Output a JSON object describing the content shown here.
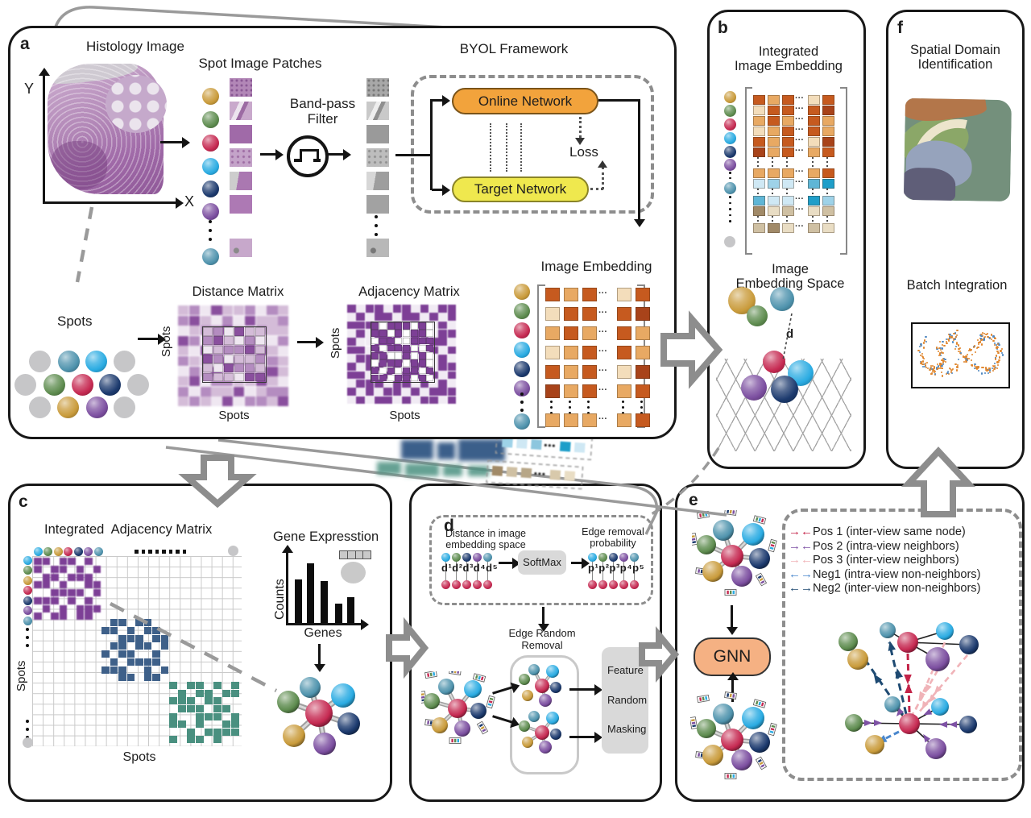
{
  "colors": {
    "gold": "#c99b3b",
    "green": "#5e8c4f",
    "crimson": "#c62a52",
    "lightblue": "#2aabe2",
    "navy": "#1c3a6e",
    "purple": "#7c4fa0",
    "teal": "#4f93ad",
    "gray_spot": "#c6c6c8",
    "online_orange": "#f2a33c",
    "target_yellow": "#efe84e",
    "gnn_peach": "#f5b183",
    "box_gray": "#d9d9d9",
    "dash_gray": "#8d8d8d",
    "matrix_purple": "#7d3f96",
    "block_blue": "#3e6089",
    "block_teal": "#4a9080",
    "scatter_orange": "#e0862e",
    "scatter_blue": "#4f87c0"
  },
  "palettes": {
    "embedding_orange": [
      "#c65a1f",
      "#e8a963",
      "#f3ddbb",
      "#a8431a",
      "#d97f3f"
    ],
    "embedding_blue": [
      "#cfe8f4",
      "#9ed2e8",
      "#5fb6d6",
      "#1f9ec9"
    ],
    "embedding_tan": [
      "#a18a68",
      "#cfc0a3",
      "#e9ddc4",
      "#b7a687"
    ],
    "distance_purple": [
      "#efe7f1",
      "#d4bcd8",
      "#b48cc0",
      "#8a4f9e"
    ]
  },
  "panel_a": {
    "label": "a",
    "histology_title": "Histology Image",
    "axis_y": "Y",
    "axis_x": "X",
    "patches_title": "Spot Image Patches",
    "bandpass_line1": "Band-pass",
    "bandpass_line2": "Filter",
    "byol_title": "BYOL Framework",
    "online_network": "Online Network",
    "target_network": "Target Network",
    "loss": "Loss",
    "spots_title": "Spots",
    "distance_title": "Distance Matrix",
    "adjacency_title": "Adjacency Matrix",
    "spots_axis_left": "Spots",
    "spots_axis_bottom": "Spots",
    "embedding_title": "Image Embedding",
    "spot_colors": [
      "gold",
      "green",
      "crimson",
      "lightblue",
      "navy",
      "purple",
      "teal"
    ],
    "embedding_rows": [
      "01020",
      "20003",
      "10101",
      "21001",
      "01023",
      "31010",
      "11110"
    ],
    "distance_outer": [
      "1203112021",
      "2310203112",
      "0122310211",
      "3201123102",
      "1032212310",
      "2110331021",
      "0213102231",
      "1302211310",
      "2021130122",
      "1210302213"
    ],
    "distance_inner": [
      "120311",
      "231020",
      "012231",
      "320112",
      "103221",
      "211033"
    ],
    "adjacency_outer": [
      "101101101011",
      "010110110101",
      "111001011010",
      "010111011011",
      "100111010110",
      "110100110101",
      "011011101010",
      "101101011011",
      "110010110101",
      "011101101010",
      "101011010111",
      "010110101101"
    ],
    "adjacency_inner": [
      "10111010",
      "11010110",
      "01100111",
      "10111001",
      "11001010",
      "01110110",
      "10101101",
      "11011010"
    ]
  },
  "panel_b": {
    "label": "b",
    "title_line1": "Integrated",
    "title_line2": "Image Embedding",
    "space_line1": "Image",
    "space_line2": "Embedding Space",
    "distance_label": "d",
    "dot_colors": [
      "gold",
      "green",
      "crimson",
      "lightblue",
      "navy",
      "purple",
      "teal"
    ],
    "orange_rows": [
      "01020",
      "20003",
      "10101",
      "21001",
      "01023",
      "31010",
      "11110"
    ],
    "blue_rows": [
      "01023",
      "20031"
    ],
    "tan_rows": [
      "02121",
      "10212"
    ]
  },
  "panel_c": {
    "label": "c",
    "title": "Integrated  Adjacency Matrix",
    "spots_left": "Spots",
    "spots_bottom": "Spots",
    "dot_colors": [
      "lightblue",
      "green",
      "gold",
      "crimson",
      "navy",
      "purple",
      "teal"
    ],
    "gene_title": "Gene Expresstion",
    "counts_label": "Counts",
    "genes_label": "Genes",
    "purple_block": [
      "11011010",
      "10110101",
      "01101110",
      "11010011",
      "00111101",
      "11101010",
      "01010111",
      "10110110"
    ],
    "blue_block": [
      "01101100",
      "11010110",
      "00111011",
      "01101101",
      "10110010",
      "01011110",
      "11100101",
      "00110110"
    ],
    "teal_block": [
      "10110101",
      "01011011",
      "11101100",
      "01110110",
      "10011101",
      "11010011",
      "00101111",
      "10110100"
    ]
  },
  "panel_d": {
    "label": "d",
    "dist_line1": "Distance in image",
    "dist_line2": "embedding space",
    "d_terms": "d¹d²d³d⁴d⁵",
    "softmax": "SoftMax",
    "edge_line1": "Edge removal",
    "edge_line2": "probability",
    "p_terms": "p¹p²p³p⁴p⁵",
    "removal_line1": "Edge Random",
    "removal_line2": "Removal",
    "masking_line1": "Feature",
    "masking_line2": "Random",
    "masking_line3": "Masking",
    "dot_colors": [
      "lightblue",
      "green",
      "navy",
      "purple",
      "teal"
    ]
  },
  "panel_e": {
    "label": "e",
    "gnn": "GNN",
    "legend": [
      {
        "label": "Pos 1 (inter-view same node)",
        "color": "#c32348",
        "dir": "toward"
      },
      {
        "label": "Pos 2 (intra-view neighbors)",
        "color": "#7e52a5",
        "dir": "toward"
      },
      {
        "label": "Pos 3 (inter-view neighbors)",
        "color": "#f0b3b8",
        "dir": "toward"
      },
      {
        "label": "Neg1 (intra-view non-neighbors)",
        "color": "#4a87cd",
        "dir": "away"
      },
      {
        "label": "Neg2 (inter-view non-neighbors)",
        "color": "#1e4a72",
        "dir": "away"
      }
    ]
  },
  "panel_f": {
    "label": "f",
    "spatial_line1": "Spatial Domain",
    "spatial_line2": "Identification",
    "batch_title": "Batch Integration"
  },
  "chart_data": {
    "type": "bar",
    "title": "Gene Expresstion",
    "xlabel": "Genes",
    "ylabel": "Counts",
    "categories": [
      "",
      "",
      "",
      "",
      ""
    ],
    "values": [
      54,
      74,
      52,
      24,
      32
    ],
    "ylim": [
      0,
      87
    ],
    "grid": false,
    "legend": "none"
  }
}
